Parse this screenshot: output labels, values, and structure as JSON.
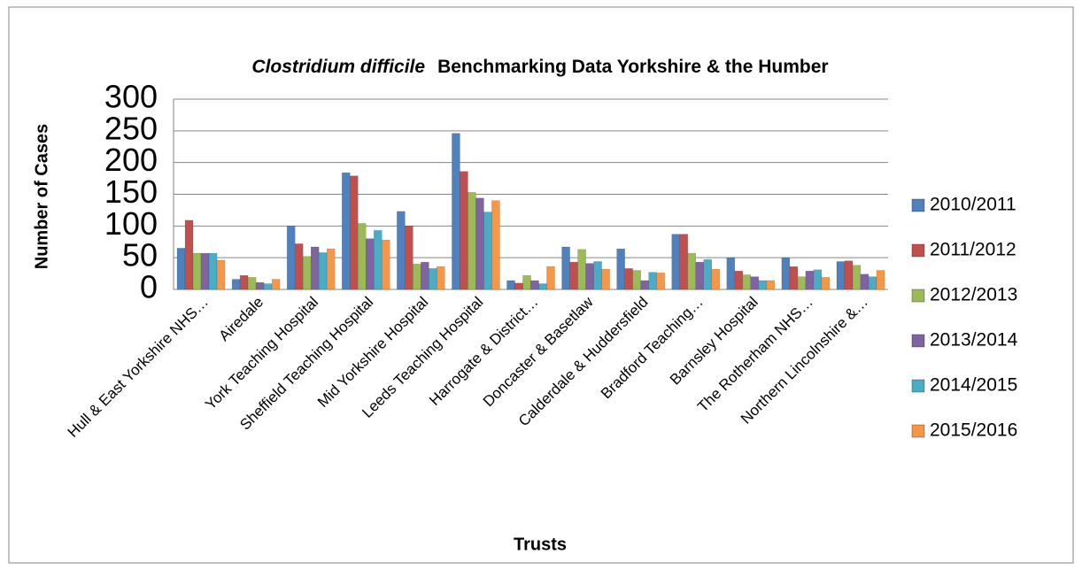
{
  "chart_data": {
    "type": "bar",
    "title": {
      "italic": "Clostridium difficile",
      "text": "Benchmarking Data Yorkshire & the Humber"
    },
    "y_label": "Number of Cases",
    "x_label": "Trusts",
    "categories": [
      "Hull & East Yorkshire NHS…",
      "Airedale",
      "York Teaching Hospital",
      "Sheffield Teaching Hospital",
      "Mid Yorkshire Hospital",
      "Leeds Teaching Hospital",
      "Harrogate & District…",
      "Doncaster & Basetlaw",
      "Calderdale & Huddersfield",
      "Bradford Teaching…",
      "Barnsley Hospital",
      "The Rotherham NHS…",
      "Northern Lincolnshire &…"
    ],
    "series": [
      {
        "name": "2010/2011",
        "color": "#4f81bd",
        "values": [
          65,
          16,
          100,
          184,
          123,
          246,
          14,
          67,
          64,
          87,
          50,
          50,
          44
        ]
      },
      {
        "name": "2011/2012",
        "color": "#c0504d",
        "values": [
          109,
          22,
          72,
          179,
          100,
          186,
          10,
          43,
          33,
          87,
          29,
          36,
          45
        ]
      },
      {
        "name": "2012/2013",
        "color": "#9bbb59",
        "values": [
          57,
          19,
          52,
          104,
          40,
          153,
          22,
          63,
          30,
          57,
          23,
          20,
          38
        ]
      },
      {
        "name": "2013/2014",
        "color": "#8064a2",
        "values": [
          57,
          11,
          67,
          80,
          43,
          144,
          14,
          41,
          14,
          43,
          20,
          29,
          24
        ]
      },
      {
        "name": "2014/2015",
        "color": "#4bacc6",
        "values": [
          57,
          9,
          58,
          93,
          33,
          122,
          9,
          44,
          27,
          47,
          14,
          31,
          20
        ]
      },
      {
        "name": "2015/2016",
        "color": "#f79646",
        "values": [
          46,
          16,
          64,
          78,
          36,
          140,
          36,
          32,
          26,
          32,
          14,
          19,
          30
        ]
      }
    ],
    "ylim": [
      0,
      300
    ],
    "yticks": [
      0,
      50,
      100,
      150,
      200,
      250,
      300
    ],
    "grid": true,
    "legend": "right"
  }
}
